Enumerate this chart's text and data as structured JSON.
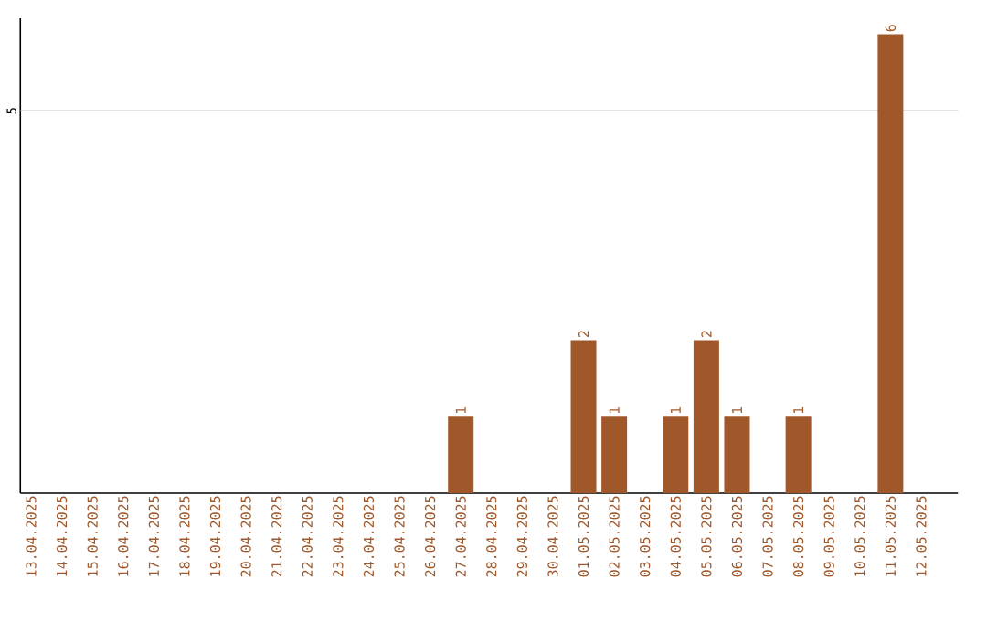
{
  "chart_data": {
    "type": "bar",
    "categories": [
      "13.04.2025",
      "14.04.2025",
      "15.04.2025",
      "16.04.2025",
      "17.04.2025",
      "18.04.2025",
      "19.04.2025",
      "20.04.2025",
      "21.04.2025",
      "22.04.2025",
      "23.04.2025",
      "24.04.2025",
      "25.04.2025",
      "26.04.2025",
      "27.04.2025",
      "28.04.2025",
      "29.04.2025",
      "30.04.2025",
      "01.05.2025",
      "02.05.2025",
      "03.05.2025",
      "04.05.2025",
      "05.05.2025",
      "06.05.2025",
      "07.05.2025",
      "08.05.2025",
      "09.05.2025",
      "10.05.2025",
      "11.05.2025",
      "12.05.2025"
    ],
    "values": [
      null,
      null,
      null,
      null,
      null,
      null,
      null,
      null,
      null,
      null,
      null,
      null,
      null,
      null,
      1,
      null,
      null,
      null,
      2,
      1,
      null,
      1,
      2,
      1,
      null,
      1,
      null,
      null,
      6,
      null
    ],
    "data_labels": true,
    "color": "#a0582a",
    "ref_lines": [
      {
        "axis": "y",
        "value": 5,
        "label": "5",
        "color": "#c8c8c8"
      }
    ]
  }
}
